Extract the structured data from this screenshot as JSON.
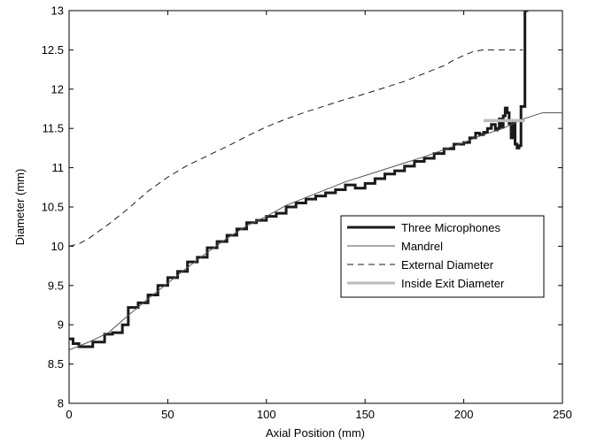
{
  "chart_data": {
    "type": "line",
    "xlabel": "Axial Position (mm)",
    "ylabel": "Diameter (mm)",
    "xlim": [
      0,
      250
    ],
    "ylim": [
      8,
      13
    ],
    "xticks": [
      "0",
      "50",
      "100",
      "150",
      "200",
      "250"
    ],
    "yticks": [
      "8",
      "8.5",
      "9",
      "9.5",
      "10",
      "10.5",
      "11",
      "11.5",
      "12",
      "12.5",
      "13"
    ],
    "grid": false,
    "legend_position": "center-right",
    "series": [
      {
        "name": "Three Microphones",
        "style": "solid-thick",
        "color": "#1a1a1a",
        "x": [
          0,
          2,
          5,
          8,
          12,
          18,
          22,
          27,
          30,
          35,
          40,
          45,
          50,
          55,
          60,
          65,
          70,
          75,
          80,
          85,
          90,
          95,
          100,
          105,
          110,
          115,
          120,
          125,
          130,
          135,
          140,
          145,
          150,
          155,
          160,
          165,
          170,
          175,
          180,
          185,
          190,
          195,
          200,
          203,
          206,
          208,
          210,
          212,
          214,
          216,
          217,
          218,
          219,
          220,
          221,
          222,
          223,
          224,
          225,
          226,
          227,
          228,
          229,
          230,
          231,
          232
        ],
        "y": [
          8.82,
          8.76,
          8.72,
          8.72,
          8.78,
          8.88,
          8.9,
          9.0,
          9.22,
          9.28,
          9.38,
          9.5,
          9.6,
          9.68,
          9.8,
          9.86,
          9.98,
          10.06,
          10.14,
          10.22,
          10.3,
          10.33,
          10.38,
          10.42,
          10.5,
          10.55,
          10.6,
          10.64,
          10.68,
          10.72,
          10.78,
          10.74,
          10.8,
          10.86,
          10.92,
          10.96,
          11.02,
          11.08,
          11.12,
          11.18,
          11.24,
          11.3,
          11.32,
          11.38,
          11.44,
          11.42,
          11.45,
          11.5,
          11.55,
          11.48,
          11.5,
          11.62,
          11.52,
          11.66,
          11.76,
          11.7,
          11.56,
          11.38,
          11.6,
          11.3,
          11.25,
          11.28,
          11.78,
          11.78,
          13.0,
          13.2
        ]
      },
      {
        "name": "Mandrel",
        "style": "solid-thin",
        "color": "#555555",
        "x": [
          0,
          10,
          20,
          30,
          40,
          50,
          60,
          70,
          80,
          90,
          100,
          110,
          120,
          130,
          140,
          150,
          160,
          170,
          180,
          190,
          200,
          210,
          220,
          230,
          240,
          250
        ],
        "y": [
          8.68,
          8.78,
          8.9,
          9.12,
          9.33,
          9.53,
          9.73,
          9.92,
          10.1,
          10.26,
          10.38,
          10.52,
          10.62,
          10.72,
          10.82,
          10.9,
          10.98,
          11.06,
          11.14,
          11.23,
          11.32,
          11.42,
          11.5,
          11.62,
          11.7,
          11.7
        ]
      },
      {
        "name": "External Diameter",
        "style": "dashed",
        "color": "#1a1a1a",
        "x": [
          0,
          5,
          10,
          20,
          30,
          40,
          50,
          60,
          70,
          80,
          90,
          100,
          110,
          120,
          130,
          140,
          150,
          160,
          170,
          180,
          190,
          195,
          200,
          205,
          210,
          220,
          230
        ],
        "y": [
          10.0,
          10.03,
          10.1,
          10.28,
          10.48,
          10.7,
          10.88,
          11.03,
          11.15,
          11.27,
          11.4,
          11.52,
          11.62,
          11.71,
          11.79,
          11.87,
          11.94,
          12.02,
          12.1,
          12.2,
          12.3,
          12.37,
          12.43,
          12.48,
          12.5,
          12.5,
          12.5
        ]
      },
      {
        "name": "Inside Exit Diameter",
        "style": "solid-light-thick",
        "color": "#bbbbbb",
        "x": [
          210,
          231
        ],
        "y": [
          11.6,
          11.6
        ]
      }
    ]
  }
}
